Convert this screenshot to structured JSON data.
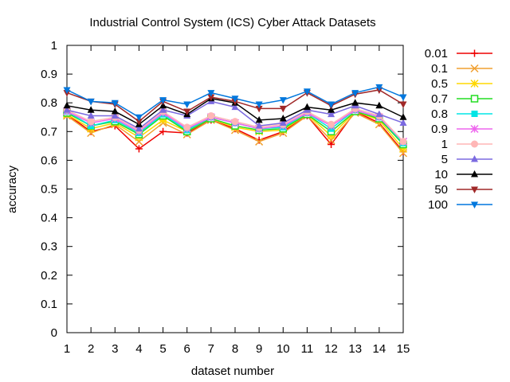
{
  "chart_data": {
    "type": "line",
    "title": "Industrial Control System (ICS) Cyber Attack Datasets",
    "xlabel": "dataset number",
    "ylabel": "accuracy",
    "xlim": [
      1,
      15
    ],
    "ylim": [
      0,
      1
    ],
    "x_ticks": [
      1,
      2,
      3,
      4,
      5,
      6,
      7,
      8,
      9,
      10,
      11,
      12,
      13,
      14,
      15
    ],
    "y_ticks": [
      0,
      0.1,
      0.2,
      0.3,
      0.4,
      0.5,
      0.6,
      0.7,
      0.8,
      0.9,
      1
    ],
    "grid": false,
    "legend_position": "outside-right",
    "x": [
      1,
      2,
      3,
      4,
      5,
      6,
      7,
      8,
      9,
      10,
      11,
      12,
      13,
      14,
      15
    ],
    "series": [
      {
        "name": "0.01",
        "color": "#ee0000",
        "marker": "plus",
        "values": [
          0.76,
          0.7,
          0.72,
          0.64,
          0.7,
          0.695,
          0.74,
          0.71,
          0.67,
          0.7,
          0.755,
          0.655,
          0.77,
          0.73,
          0.63
        ]
      },
      {
        "name": "0.1",
        "color": "#f0a030",
        "marker": "cross",
        "values": [
          0.755,
          0.695,
          0.725,
          0.665,
          0.73,
          0.69,
          0.74,
          0.705,
          0.665,
          0.695,
          0.755,
          0.67,
          0.765,
          0.725,
          0.625
        ]
      },
      {
        "name": "0.5",
        "color": "#ffd800",
        "marker": "star",
        "values": [
          0.76,
          0.71,
          0.73,
          0.68,
          0.74,
          0.7,
          0.745,
          0.715,
          0.7,
          0.705,
          0.76,
          0.685,
          0.77,
          0.74,
          0.64
        ]
      },
      {
        "name": "0.7",
        "color": "#22dd22",
        "marker": "square",
        "values": [
          0.765,
          0.72,
          0.735,
          0.69,
          0.755,
          0.7,
          0.745,
          0.72,
          0.705,
          0.71,
          0.76,
          0.7,
          0.77,
          0.745,
          0.655
        ]
      },
      {
        "name": "0.8",
        "color": "#00e5e5",
        "marker": "filled-square",
        "values": [
          0.77,
          0.72,
          0.74,
          0.695,
          0.76,
          0.705,
          0.75,
          0.73,
          0.71,
          0.715,
          0.765,
          0.71,
          0.775,
          0.75,
          0.66
        ]
      },
      {
        "name": "0.9",
        "color": "#ee66ee",
        "marker": "star",
        "values": [
          0.77,
          0.73,
          0.745,
          0.7,
          0.765,
          0.71,
          0.75,
          0.73,
          0.71,
          0.72,
          0.765,
          0.72,
          0.775,
          0.75,
          0.665
        ]
      },
      {
        "name": "1",
        "color": "#ffb6b6",
        "marker": "circle",
        "values": [
          0.775,
          0.735,
          0.75,
          0.705,
          0.77,
          0.715,
          0.755,
          0.735,
          0.715,
          0.725,
          0.77,
          0.725,
          0.78,
          0.755,
          0.665
        ]
      },
      {
        "name": "5",
        "color": "#7b6ae0",
        "marker": "triangle",
        "values": [
          0.775,
          0.755,
          0.755,
          0.71,
          0.775,
          0.755,
          0.805,
          0.785,
          0.72,
          0.73,
          0.775,
          0.76,
          0.79,
          0.76,
          0.73
        ]
      },
      {
        "name": "10",
        "color": "#000000",
        "marker": "triangle",
        "values": [
          0.79,
          0.775,
          0.77,
          0.725,
          0.79,
          0.76,
          0.815,
          0.8,
          0.74,
          0.745,
          0.785,
          0.775,
          0.8,
          0.79,
          0.75
        ]
      },
      {
        "name": "50",
        "color": "#a02828",
        "marker": "triangle-down",
        "values": [
          0.835,
          0.805,
          0.795,
          0.735,
          0.805,
          0.77,
          0.82,
          0.805,
          0.78,
          0.78,
          0.835,
          0.79,
          0.83,
          0.845,
          0.795
        ]
      },
      {
        "name": "100",
        "color": "#0077dd",
        "marker": "triangle-down",
        "values": [
          0.845,
          0.805,
          0.8,
          0.75,
          0.81,
          0.795,
          0.835,
          0.815,
          0.795,
          0.81,
          0.84,
          0.795,
          0.835,
          0.855,
          0.82
        ]
      }
    ]
  }
}
